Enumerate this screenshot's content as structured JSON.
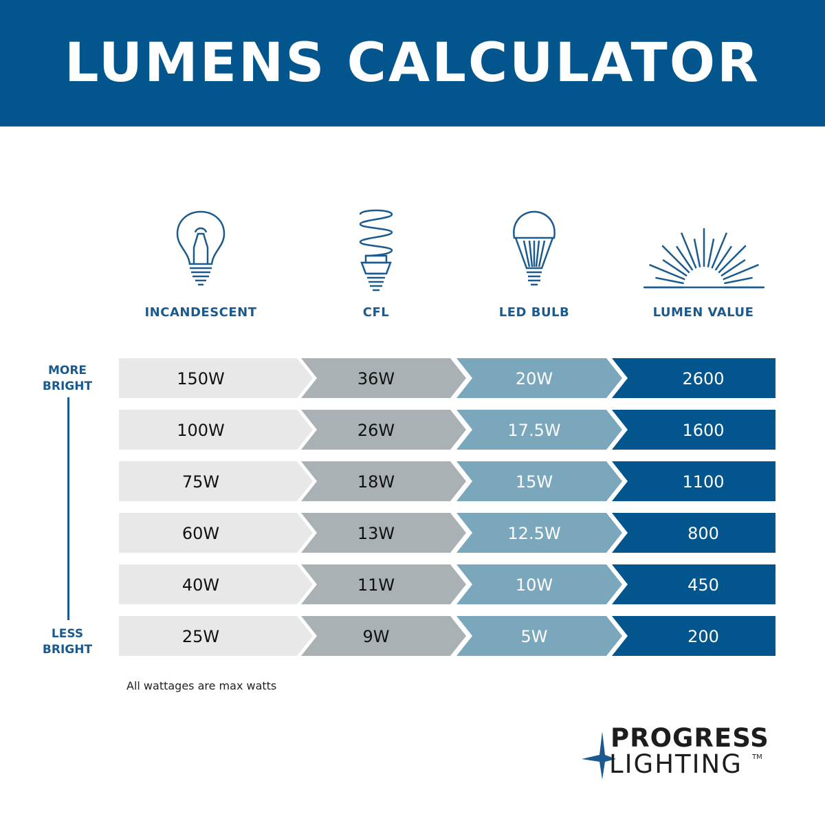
{
  "title": "LUMENS CALCULATOR",
  "columns": [
    {
      "label": "INCANDESCENT",
      "icon": "incandescent-bulb-icon"
    },
    {
      "label": "CFL",
      "icon": "cfl-bulb-icon"
    },
    {
      "label": "LED BULB",
      "icon": "led-bulb-icon"
    },
    {
      "label": "LUMEN VALUE",
      "icon": "sunburst-icon"
    }
  ],
  "scale": {
    "top": [
      "MORE",
      "BRIGHT"
    ],
    "bottom": [
      "LESS",
      "BRIGHT"
    ]
  },
  "rows": [
    [
      "150W",
      "36W",
      "20W",
      "2600"
    ],
    [
      "100W",
      "26W",
      "17.5W",
      "1600"
    ],
    [
      "75W",
      "18W",
      "15W",
      "1100"
    ],
    [
      "60W",
      "13W",
      "12.5W",
      "800"
    ],
    [
      "40W",
      "11W",
      "10W",
      "450"
    ],
    [
      "25W",
      "9W",
      "5W",
      "200"
    ]
  ],
  "colors": {
    "header": "#02568d",
    "col1": "#e8e8e8",
    "col2": "#a9b1b5",
    "col3": "#7ba7bd",
    "col4": "#02568d",
    "accent_text": "#1a5a8e"
  },
  "note": "All wattages are max watts",
  "logo": {
    "line1": "PROGRESS",
    "line2": "LIGHTING",
    "tm": "TM"
  }
}
